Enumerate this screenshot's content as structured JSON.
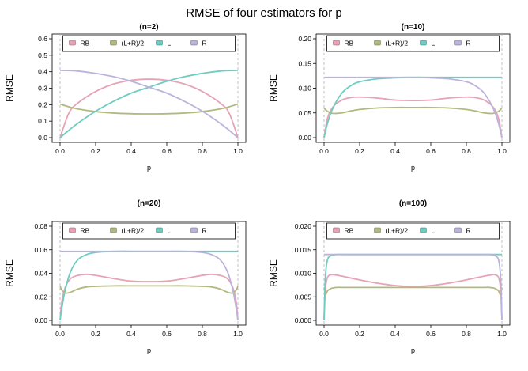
{
  "figure_title": "RMSE of four estimators for p",
  "colors": {
    "RB": "#E5A3B5",
    "(L+R)/2": "#B3B97E",
    "L": "#6FCCC0",
    "R": "#BCB3DD",
    "vline": "#B0B0B0"
  },
  "chart_data": [
    {
      "type": "line",
      "title": "(n=2)",
      "xlabel": "p",
      "ylabel": "RMSE",
      "xlim": [
        0,
        1
      ],
      "ylim": [
        0,
        0.6
      ],
      "xticks": [
        "0.0",
        "0.2",
        "0.4",
        "0.6",
        "0.8",
        "1.0"
      ],
      "yticks": [
        "0.0",
        "0.1",
        "0.2",
        "0.3",
        "0.4",
        "0.5",
        "0.6"
      ],
      "legend": [
        "RB",
        "(L+R)/2",
        "L",
        "R"
      ],
      "legend_position": "top",
      "x": [
        0,
        0.05,
        0.1,
        0.2,
        0.3,
        0.4,
        0.5,
        0.6,
        0.7,
        0.8,
        0.9,
        0.95,
        1
      ],
      "series": [
        {
          "name": "RB",
          "values": [
            0,
            0.15,
            0.21,
            0.28,
            0.325,
            0.348,
            0.355,
            0.348,
            0.325,
            0.28,
            0.21,
            0.15,
            0
          ]
        },
        {
          "name": "(L+R)/2",
          "values": [
            0.204,
            0.187,
            0.174,
            0.158,
            0.149,
            0.145,
            0.144,
            0.145,
            0.149,
            0.158,
            0.174,
            0.187,
            0.204
          ]
        },
        {
          "name": "L",
          "values": [
            0,
            0.045,
            0.087,
            0.16,
            0.22,
            0.27,
            0.306,
            0.342,
            0.37,
            0.39,
            0.404,
            0.407,
            0.408
          ]
        },
        {
          "name": "R",
          "values": [
            0.408,
            0.407,
            0.404,
            0.39,
            0.37,
            0.342,
            0.306,
            0.27,
            0.22,
            0.16,
            0.087,
            0.045,
            0
          ]
        }
      ]
    },
    {
      "type": "line",
      "title": "(n=10)",
      "xlabel": "p",
      "ylabel": "RMSE",
      "xlim": [
        0,
        1
      ],
      "ylim": [
        0,
        0.2
      ],
      "xticks": [
        "0.0",
        "0.2",
        "0.4",
        "0.6",
        "0.8",
        "1.0"
      ],
      "yticks": [
        "0.00",
        "0.05",
        "0.10",
        "0.15",
        "0.20"
      ],
      "legend": [
        "RB",
        "(L+R)/2",
        "L",
        "R"
      ],
      "legend_position": "top",
      "x": [
        0,
        0.02,
        0.05,
        0.1,
        0.15,
        0.2,
        0.3,
        0.4,
        0.5,
        0.6,
        0.7,
        0.8,
        0.85,
        0.9,
        0.95,
        0.98,
        1
      ],
      "series": [
        {
          "name": "RB",
          "values": [
            0,
            0.04,
            0.062,
            0.076,
            0.081,
            0.082,
            0.08,
            0.076,
            0.075,
            0.076,
            0.08,
            0.082,
            0.081,
            0.076,
            0.062,
            0.04,
            0
          ]
        },
        {
          "name": "(L+R)/2",
          "values": [
            0.06,
            0.053,
            0.049,
            0.05,
            0.054,
            0.057,
            0.06,
            0.061,
            0.061,
            0.061,
            0.06,
            0.057,
            0.054,
            0.05,
            0.049,
            0.053,
            0.06
          ]
        },
        {
          "name": "L",
          "values": [
            0,
            0.03,
            0.06,
            0.09,
            0.105,
            0.113,
            0.119,
            0.121,
            0.122,
            0.122,
            0.122,
            0.122,
            0.122,
            0.122,
            0.122,
            0.122,
            0.122
          ]
        },
        {
          "name": "R",
          "values": [
            0.122,
            0.122,
            0.122,
            0.122,
            0.122,
            0.122,
            0.122,
            0.122,
            0.122,
            0.121,
            0.119,
            0.113,
            0.105,
            0.09,
            0.06,
            0.03,
            0
          ]
        }
      ]
    },
    {
      "type": "line",
      "title": "(n=20)",
      "xlabel": "p",
      "ylabel": "RMSE",
      "xlim": [
        0,
        1
      ],
      "ylim": [
        0,
        0.09
      ],
      "xticks": [
        "0.0",
        "0.2",
        "0.4",
        "0.6",
        "0.8",
        "1.0"
      ],
      "yticks": [
        "0.00",
        "0.02",
        "0.04",
        "0.06",
        "0.08"
      ],
      "legend": [
        "RB",
        "(L+R)/2",
        "L",
        "R"
      ],
      "legend_position": "top",
      "x": [
        0,
        0.01,
        0.03,
        0.06,
        0.1,
        0.15,
        0.2,
        0.3,
        0.4,
        0.5,
        0.6,
        0.7,
        0.8,
        0.85,
        0.9,
        0.94,
        0.97,
        0.99,
        1
      ],
      "series": [
        {
          "name": "RB",
          "values": [
            0,
            0.018,
            0.032,
            0.04,
            0.043,
            0.044,
            0.043,
            0.04,
            0.0375,
            0.037,
            0.0375,
            0.04,
            0.043,
            0.044,
            0.043,
            0.04,
            0.032,
            0.018,
            0
          ]
        },
        {
          "name": "(L+R)/2",
          "values": [
            0.033,
            0.029,
            0.026,
            0.027,
            0.03,
            0.032,
            0.0325,
            0.033,
            0.033,
            0.033,
            0.033,
            0.033,
            0.0325,
            0.032,
            0.03,
            0.027,
            0.026,
            0.029,
            0.033
          ]
        },
        {
          "name": "L",
          "values": [
            0,
            0.012,
            0.03,
            0.047,
            0.058,
            0.063,
            0.065,
            0.066,
            0.066,
            0.066,
            0.066,
            0.066,
            0.066,
            0.066,
            0.066,
            0.066,
            0.066,
            0.066,
            0.066
          ]
        },
        {
          "name": "R",
          "values": [
            0.066,
            0.066,
            0.066,
            0.066,
            0.066,
            0.066,
            0.066,
            0.066,
            0.066,
            0.066,
            0.066,
            0.066,
            0.065,
            0.063,
            0.058,
            0.047,
            0.03,
            0.012,
            0
          ]
        }
      ]
    },
    {
      "type": "line",
      "title": "(n=100)",
      "xlabel": "p",
      "ylabel": "RMSE",
      "xlim": [
        0,
        1
      ],
      "ylim": [
        0,
        0.02
      ],
      "xticks": [
        "0.0",
        "0.2",
        "0.4",
        "0.6",
        "0.8",
        "1.0"
      ],
      "yticks": [
        "0.000",
        "0.005",
        "0.010",
        "0.015",
        "0.020"
      ],
      "legend": [
        "RB",
        "(L+R)/2",
        "L",
        "R"
      ],
      "legend_position": "top",
      "x": [
        0,
        0.005,
        0.01,
        0.02,
        0.04,
        0.07,
        0.1,
        0.2,
        0.3,
        0.4,
        0.5,
        0.6,
        0.7,
        0.8,
        0.9,
        0.93,
        0.96,
        0.98,
        0.99,
        0.995,
        1
      ],
      "series": [
        {
          "name": "RB",
          "values": [
            0,
            0.005,
            0.0075,
            0.0092,
            0.0097,
            0.0096,
            0.0094,
            0.0086,
            0.0079,
            0.0074,
            0.0072,
            0.0074,
            0.0079,
            0.0086,
            0.0094,
            0.0096,
            0.0097,
            0.0092,
            0.0075,
            0.005,
            0
          ]
        },
        {
          "name": "(L+R)/2",
          "values": [
            0.007,
            0.0058,
            0.0055,
            0.0063,
            0.0068,
            0.007,
            0.007,
            0.007,
            0.007,
            0.007,
            0.007,
            0.007,
            0.007,
            0.007,
            0.007,
            0.007,
            0.0068,
            0.0063,
            0.0055,
            0.0058,
            0.007
          ]
        },
        {
          "name": "L",
          "values": [
            0,
            0.007,
            0.0105,
            0.013,
            0.0138,
            0.014,
            0.014,
            0.014,
            0.014,
            0.014,
            0.014,
            0.014,
            0.014,
            0.014,
            0.014,
            0.014,
            0.014,
            0.014,
            0.014,
            0.014,
            0.014
          ]
        },
        {
          "name": "R",
          "values": [
            0.014,
            0.014,
            0.014,
            0.014,
            0.014,
            0.014,
            0.014,
            0.014,
            0.014,
            0.014,
            0.014,
            0.014,
            0.014,
            0.014,
            0.014,
            0.014,
            0.0138,
            0.013,
            0.0105,
            0.007,
            0
          ]
        }
      ]
    }
  ]
}
